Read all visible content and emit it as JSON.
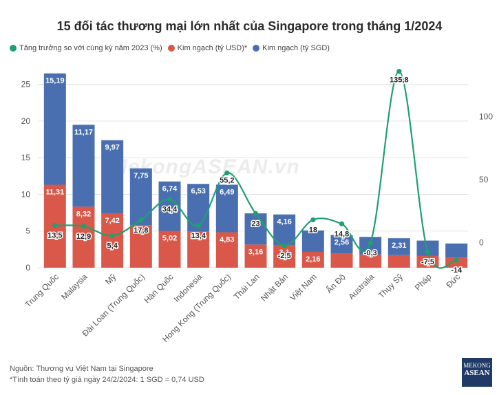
{
  "title": "15 đối tác thương mại lớn nhất của Singapore trong tháng 1/2024",
  "legend": {
    "growth": "Tăng trưởng so với cùng kỳ năm 2023 (%)",
    "usd": "Kim ngạch (tỷ USD)*",
    "sgd": "Kim ngạch (tỷ SGD)"
  },
  "watermark": "MekongASEAN.vn",
  "footer": {
    "source": "Nguồn: Thương vụ Việt Nam tại Singapore",
    "note": "*Tính toán theo tỷ giá ngày 24/2/2024: 1 SGD = 0,74 USD"
  },
  "logo": {
    "line1": "MEKONG",
    "line2": "ASEAN"
  },
  "colors": {
    "usd": "#d9584a",
    "sgd": "#4a6fb0",
    "growth": "#1fa06f"
  },
  "chart_data": {
    "type": "bar",
    "stacked": true,
    "categories": [
      "Trung Quốc",
      "Malaysia",
      "Mỹ",
      "Đài Loan (Trung Quốc)",
      "Hàn Quốc",
      "Indonesia",
      "Hong Kong (Trung Quốc)",
      "Thái Lan",
      "Nhật Bản",
      "Việt Nam",
      "Ấn Độ",
      "Australia",
      "Thụy Sỹ",
      "Pháp",
      "Đức"
    ],
    "series": [
      {
        "name": "Kim ngạch (tỷ USD)*",
        "axis": "left",
        "values": [
          11.31,
          8.32,
          7.42,
          5.8,
          5.02,
          4.9,
          4.83,
          3.16,
          3.1,
          2.16,
          1.9,
          1.8,
          1.71,
          1.6,
          1.4
        ],
        "labels": [
          "11,31",
          "8,32",
          "7,42",
          "",
          "5,02",
          "",
          "4,83",
          "3,16",
          "3,1",
          "2,16",
          "",
          "",
          "",
          "",
          ""
        ]
      },
      {
        "name": "Kim ngạch (tỷ SGD)",
        "axis": "left",
        "values": [
          15.19,
          11.17,
          9.97,
          7.75,
          6.74,
          6.53,
          6.49,
          4.25,
          4.16,
          2.92,
          2.56,
          2.4,
          2.31,
          2.1,
          1.9
        ],
        "labels": [
          "15,19",
          "11,17",
          "9,97",
          "7,75",
          "6,74",
          "6,53",
          "6,49",
          "",
          "4,16",
          "",
          "2,56",
          "",
          "2,31",
          "",
          ""
        ]
      },
      {
        "name": "Tăng trưởng so với cùng kỳ năm 2023 (%)",
        "axis": "right",
        "type": "line",
        "values": [
          13.5,
          12.9,
          5.4,
          17.8,
          34.4,
          13.4,
          55.2,
          23,
          -2.5,
          18,
          14.8,
          -0.3,
          135.8,
          -7.5,
          -14
        ],
        "labels": [
          "13,5",
          "12,9",
          "5,4",
          "17,8",
          "34,4",
          "13,4",
          "55,2",
          "23",
          "-2,5",
          "18",
          "14,8",
          "-0,3",
          "135,8",
          "-7,5",
          "-14"
        ]
      }
    ],
    "ylim": [
      0,
      27.5
    ],
    "yticks": [
      "0",
      "5",
      "10",
      "15",
      "20",
      "25"
    ],
    "y2lim": [
      -20,
      140
    ],
    "y2ticks": [
      "0",
      "50",
      "100"
    ],
    "grid": true,
    "legend_position": "top-left"
  }
}
